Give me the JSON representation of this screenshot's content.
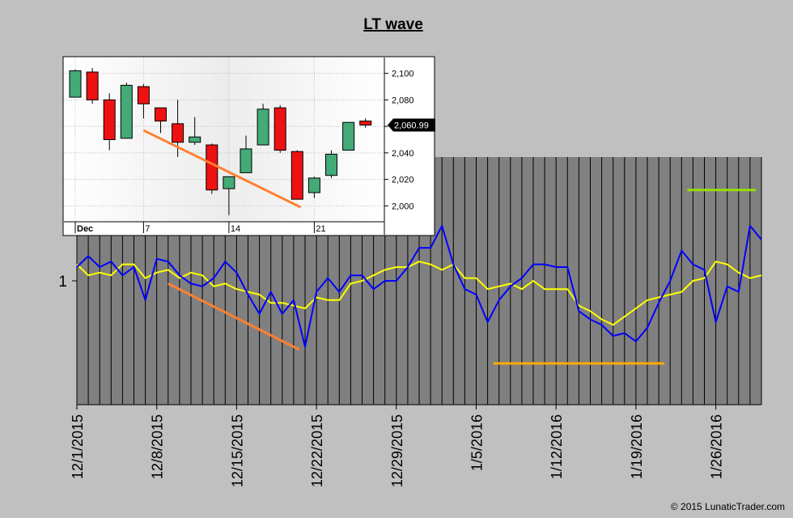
{
  "chart_data": [
    {
      "type": "line",
      "title": "LT wave",
      "y_tick_labels": [
        "1"
      ],
      "x_tick_labels": [
        "12/1/2015",
        "12/8/2015",
        "12/15/2015",
        "12/22/2015",
        "12/29/2015",
        "1/5/2016",
        "1/12/2016",
        "1/19/2016",
        "1/26/2016"
      ],
      "x_count": 61,
      "x_tick_indices": [
        0,
        7,
        14,
        21,
        28,
        35,
        42,
        49,
        56
      ],
      "ylim": [
        0.55,
        1.45
      ],
      "series": [
        {
          "color": "#0000ff",
          "values": [
            1.05,
            1.09,
            1.05,
            1.07,
            1.02,
            1.05,
            0.93,
            1.08,
            1.07,
            1.02,
            0.99,
            0.98,
            1.01,
            1.07,
            1.03,
            0.95,
            0.88,
            0.96,
            0.88,
            0.93,
            0.76,
            0.96,
            1.01,
            0.96,
            1.02,
            1.02,
            0.97,
            1.0,
            1.0,
            1.05,
            1.12,
            1.12,
            1.2,
            1.06,
            0.97,
            0.95,
            0.85,
            0.93,
            0.98,
            1.01,
            1.06,
            1.06,
            1.05,
            1.05,
            0.89,
            0.86,
            0.84,
            0.8,
            0.81,
            0.78,
            0.83,
            0.92,
            1.0,
            1.11,
            1.06,
            1.04,
            0.85,
            0.98,
            0.96,
            1.2,
            1.15
          ]
        },
        {
          "color": "#ffff00",
          "values": [
            1.06,
            1.02,
            1.03,
            1.02,
            1.06,
            1.06,
            1.01,
            1.03,
            1.04,
            1.01,
            1.03,
            1.02,
            0.98,
            0.99,
            0.97,
            0.96,
            0.95,
            0.92,
            0.92,
            0.91,
            0.9,
            0.94,
            0.93,
            0.93,
            0.99,
            1.0,
            1.02,
            1.04,
            1.05,
            1.05,
            1.07,
            1.06,
            1.04,
            1.06,
            1.01,
            1.01,
            0.97,
            0.98,
            0.99,
            0.97,
            1.0,
            0.97,
            0.97,
            0.97,
            0.91,
            0.89,
            0.86,
            0.84,
            0.87,
            0.9,
            0.93,
            0.94,
            0.95,
            0.96,
            1.0,
            1.01,
            1.07,
            1.06,
            1.03,
            1.01,
            1.02
          ]
        }
      ],
      "annotations": [
        {
          "color": "#ff8030",
          "x0": 8,
          "y0": 0.99,
          "x1": 19.5,
          "y1": 0.75
        },
        {
          "color": "#ffaa00",
          "x0": 36.5,
          "y0": 0.7,
          "x1": 51.5,
          "y1": 0.7
        },
        {
          "color": "#99dd00",
          "x0": 53.5,
          "y0": 1.33,
          "x1": 59.5,
          "y1": 1.33
        }
      ],
      "grid": true
    },
    {
      "type": "candlestick",
      "y_tick_labels": [
        "2,000",
        "2,020",
        "2,040",
        "2,060",
        "2,080",
        "2,100"
      ],
      "y_ticks": [
        2000,
        2020,
        2040,
        2060,
        2080,
        2100
      ],
      "ylim": [
        1988,
        2112
      ],
      "x_tick_labels": [
        "Dec",
        "7",
        "14",
        "21"
      ],
      "x_tick_indices": [
        0,
        4,
        9,
        14
      ],
      "last_price_label": "2,060.99",
      "last_price": 2060.99,
      "up_color": "#44aa77",
      "down_color": "#ee1111",
      "candles": [
        {
          "o": 2082,
          "h": 2103,
          "l": 2082,
          "c": 2102
        },
        {
          "o": 2101,
          "h": 2104,
          "l": 2077,
          "c": 2080
        },
        {
          "o": 2080,
          "h": 2085,
          "l": 2042,
          "c": 2050
        },
        {
          "o": 2051,
          "h": 2093,
          "l": 2051,
          "c": 2091
        },
        {
          "o": 2090,
          "h": 2092,
          "l": 2066,
          "c": 2077
        },
        {
          "o": 2074,
          "h": 2074,
          "l": 2055,
          "c": 2064
        },
        {
          "o": 2062,
          "h": 2080,
          "l": 2037,
          "c": 2048
        },
        {
          "o": 2048,
          "h": 2067,
          "l": 2046,
          "c": 2052
        },
        {
          "o": 2046,
          "h": 2047,
          "l": 2009,
          "c": 2012
        },
        {
          "o": 2013,
          "h": 2022,
          "l": 1993,
          "c": 2022
        },
        {
          "o": 2025,
          "h": 2053,
          "l": 2025,
          "c": 2043
        },
        {
          "o": 2046,
          "h": 2077,
          "l": 2046,
          "c": 2073
        },
        {
          "o": 2074,
          "h": 2076,
          "l": 2040,
          "c": 2042
        },
        {
          "o": 2041,
          "h": 2042,
          "l": 2005,
          "c": 2005
        },
        {
          "o": 2010,
          "h": 2022,
          "l": 2006,
          "c": 2021
        },
        {
          "o": 2023,
          "h": 2042,
          "l": 2021,
          "c": 2039
        },
        {
          "o": 2042,
          "h": 2063,
          "l": 2042,
          "c": 2063
        },
        {
          "o": 2064,
          "h": 2066,
          "l": 2059,
          "c": 2061
        }
      ],
      "annotations": [
        {
          "color": "#ff8030",
          "x0": 4,
          "y0": 2057,
          "x1": 13.2,
          "y1": 1999
        }
      ]
    }
  ],
  "copyright": "© 2015 LunaticTrader.com"
}
